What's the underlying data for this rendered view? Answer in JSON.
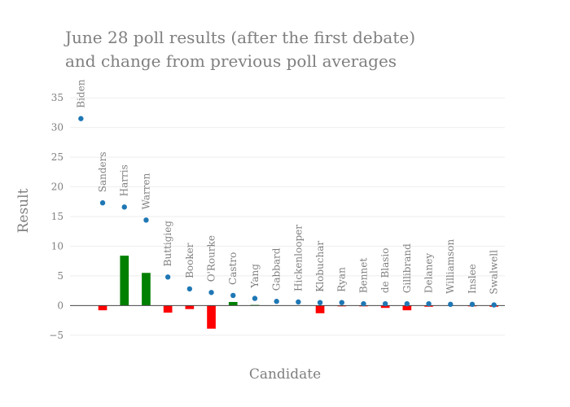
{
  "chart_data": {
    "type": "bar",
    "title_lines": [
      "June 28 poll results (after the first debate)",
      "and change from previous poll averages"
    ],
    "xlabel": "Candidate",
    "ylabel": "Result",
    "ylim": [
      -7.5,
      37.5
    ],
    "yticks": [
      -5,
      0,
      5,
      10,
      15,
      20,
      25,
      30,
      35
    ],
    "grid": true,
    "colors": {
      "result_marker": "#1f77b4",
      "change_positive": "#008000",
      "change_negative": "#ff0000",
      "text": "#7f7f7f",
      "grid": "#eeeeee",
      "zero_line": "#444444"
    },
    "categories": [
      "Biden",
      "Sanders",
      "Harris",
      "Warren",
      "Buttigieg",
      "Booker",
      "O'Rourke",
      "Castro",
      "Yang",
      "Gabbard",
      "Hickenlooper",
      "Klobuchar",
      "Ryan",
      "Bennet",
      "de Blasio",
      "Gillibrand",
      "Delaney",
      "Williamson",
      "Inslee",
      "Swalwell"
    ],
    "series": [
      {
        "values": [
          31.5,
          17.3,
          16.6,
          14.4,
          4.8,
          2.8,
          2.2,
          1.7,
          1.2,
          0.7,
          0.6,
          0.5,
          0.5,
          0.3,
          0.3,
          0.3,
          0.3,
          0.2,
          0.2,
          0.1
        ]
      },
      {
        "values": [
          0.0,
          -0.8,
          8.4,
          5.5,
          -1.2,
          -0.6,
          -3.9,
          0.6,
          0.1,
          0.0,
          0.0,
          -1.3,
          -0.1,
          -0.1,
          -0.4,
          -0.8,
          -0.2,
          0.0,
          -0.1,
          -0.2
        ]
      }
    ]
  }
}
